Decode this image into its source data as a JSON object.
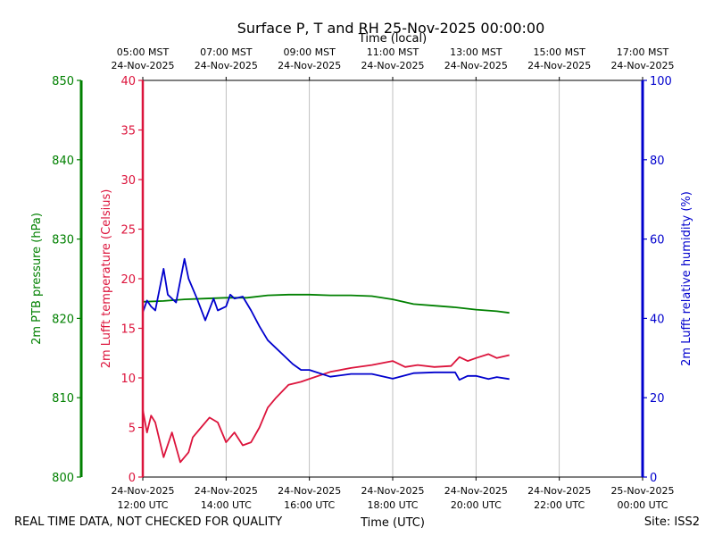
{
  "chart_data": {
    "type": "line",
    "title": "Surface P, T and RH 25-Nov-2025 00:00:00",
    "xlabel": "Time (UTC)",
    "xlabel_top": "Time (local)",
    "x_ticks_bottom": [
      [
        "24-Nov-2025",
        "12:00 UTC"
      ],
      [
        "24-Nov-2025",
        "14:00 UTC"
      ],
      [
        "24-Nov-2025",
        "16:00 UTC"
      ],
      [
        "24-Nov-2025",
        "18:00 UTC"
      ],
      [
        "24-Nov-2025",
        "20:00 UTC"
      ],
      [
        "24-Nov-2025",
        "22:00 UTC"
      ],
      [
        "25-Nov-2025",
        "00:00 UTC"
      ]
    ],
    "x_ticks_top": [
      [
        "05:00 MST",
        "24-Nov-2025"
      ],
      [
        "07:00 MST",
        "24-Nov-2025"
      ],
      [
        "09:00 MST",
        "24-Nov-2025"
      ],
      [
        "11:00 MST",
        "24-Nov-2025"
      ],
      [
        "13:00 MST",
        "24-Nov-2025"
      ],
      [
        "15:00 MST",
        "24-Nov-2025"
      ],
      [
        "17:00 MST",
        "24-Nov-2025"
      ]
    ],
    "xlim_hours_utc": [
      12,
      24
    ],
    "grid": "vertical",
    "axes": {
      "pressure": {
        "label": "2m PTB pressure (hPa)",
        "range": [
          800,
          850
        ],
        "ticks": [
          800,
          810,
          820,
          830,
          840,
          850
        ],
        "color": "#008000"
      },
      "temperature": {
        "label": "2m Lufft temperature (Celsius)",
        "range": [
          0,
          40
        ],
        "ticks": [
          0,
          5,
          10,
          15,
          20,
          25,
          30,
          35,
          40
        ],
        "color": "#dc143c"
      },
      "humidity": {
        "label": "2m Lufft relative humidity (%)",
        "range": [
          0,
          100
        ],
        "ticks": [
          0,
          20,
          40,
          60,
          80,
          100
        ],
        "color": "#0000cd"
      }
    },
    "series": [
      {
        "axis": "pressure",
        "color": "#008000",
        "x": [
          12.0,
          12.5,
          13.0,
          13.5,
          14.0,
          14.5,
          15.0,
          15.5,
          16.0,
          16.5,
          17.0,
          17.5,
          18.0,
          18.5,
          19.0,
          19.5,
          20.0,
          20.5,
          20.8
        ],
        "y": [
          822.1,
          822.2,
          822.4,
          822.5,
          822.6,
          822.6,
          822.9,
          823.0,
          823.0,
          822.9,
          822.9,
          822.8,
          822.4,
          821.8,
          821.6,
          821.4,
          821.1,
          820.9,
          820.7
        ]
      },
      {
        "axis": "temperature",
        "color": "#dc143c",
        "x": [
          12.0,
          12.1,
          12.2,
          12.3,
          12.5,
          12.7,
          12.9,
          13.1,
          13.2,
          13.4,
          13.6,
          13.8,
          14.0,
          14.2,
          14.4,
          14.6,
          14.8,
          15.0,
          15.2,
          15.5,
          15.8,
          16.0,
          16.5,
          17.0,
          17.5,
          18.0,
          18.3,
          18.6,
          19.0,
          19.4,
          19.6,
          19.8,
          20.0,
          20.3,
          20.5,
          20.8
        ],
        "y": [
          6.8,
          4.5,
          6.2,
          5.5,
          2.0,
          4.5,
          1.5,
          2.5,
          4.0,
          5.0,
          6.0,
          5.5,
          3.5,
          4.5,
          3.2,
          3.5,
          5.0,
          7.0,
          8.0,
          9.3,
          9.6,
          9.9,
          10.6,
          11.0,
          11.3,
          11.7,
          11.1,
          11.3,
          11.1,
          11.2,
          12.1,
          11.7,
          12.0,
          12.4,
          12.0,
          12.3
        ]
      },
      {
        "axis": "humidity",
        "color": "#0000cd",
        "x": [
          12.0,
          12.1,
          12.2,
          12.3,
          12.5,
          12.6,
          12.8,
          13.0,
          13.1,
          13.3,
          13.5,
          13.7,
          13.8,
          14.0,
          14.1,
          14.2,
          14.4,
          14.6,
          14.8,
          15.0,
          15.2,
          15.4,
          15.6,
          15.8,
          16.0,
          16.5,
          17.0,
          17.5,
          18.0,
          18.5,
          19.0,
          19.5,
          19.6,
          19.8,
          20.0,
          20.3,
          20.5,
          20.8
        ],
        "y": [
          41.5,
          44.5,
          43.0,
          42.0,
          52.5,
          46.0,
          44.0,
          55.0,
          50.0,
          45.0,
          39.5,
          45.0,
          42.0,
          43.0,
          46.0,
          45.0,
          45.5,
          42.0,
          38.0,
          34.5,
          32.5,
          30.5,
          28.5,
          27.0,
          27.0,
          25.3,
          26.0,
          26.0,
          24.8,
          26.2,
          26.4,
          26.4,
          24.5,
          25.5,
          25.5,
          24.7,
          25.2,
          24.7
        ]
      }
    ]
  },
  "footer": {
    "left_note": "REAL TIME DATA, NOT CHECKED FOR QUALITY",
    "site": "Site: ISS2"
  }
}
